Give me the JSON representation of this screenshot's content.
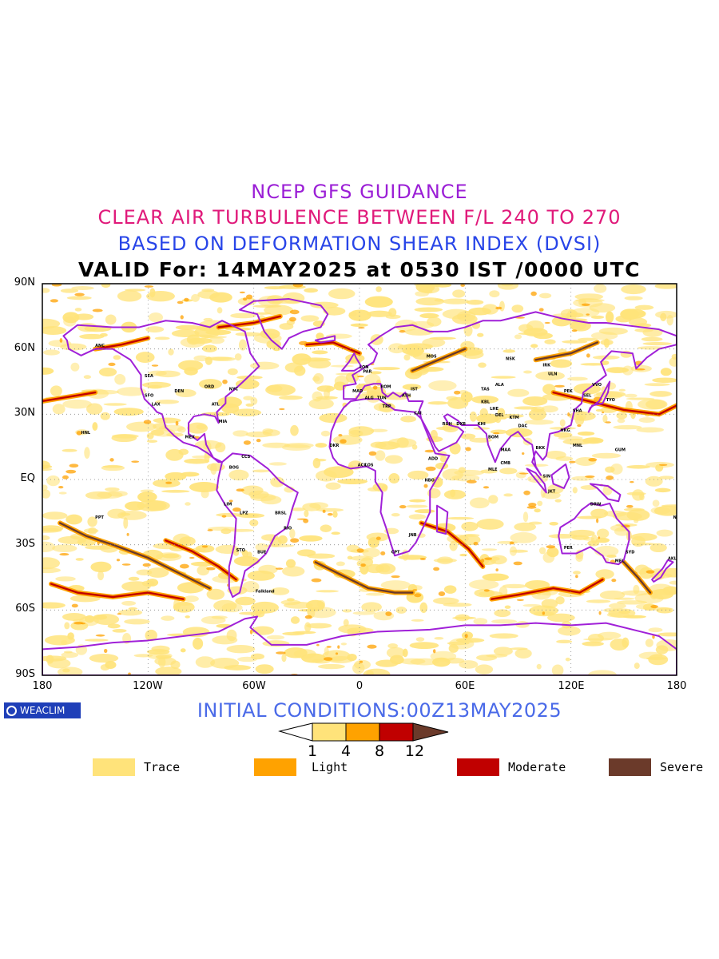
{
  "header": {
    "line1": "NCEP GFS GUIDANCE",
    "line2": "CLEAR AIR TURBULENCE BETWEEN F/L 240 TO 270",
    "line3": "BASED ON DEFORMATION SHEAR INDEX (DVSI)",
    "line4": "VALID For: 14MAY2025 at 0530 IST /0000 UTC"
  },
  "colors": {
    "line1": "#9b1fd6",
    "line2": "#e0197a",
    "line3": "#2845e8",
    "line4": "#000000",
    "coast": "#a020d8",
    "trace": "#ffe37a",
    "light": "#ffa200",
    "moderate": "#c00000",
    "severe": "#6b3a2a",
    "initial": "#4a6ae8"
  },
  "axes": {
    "lat_labels": [
      "90N",
      "60N",
      "30N",
      "EQ",
      "30S",
      "60S",
      "90S"
    ],
    "lon_labels": [
      "180",
      "120W",
      "60W",
      "0",
      "60E",
      "120E",
      "180"
    ]
  },
  "logo": {
    "text": "WEACLIM",
    "icon": "circle-logo-icon"
  },
  "initial_conditions": "INITIAL CONDITIONS:00Z13MAY2025",
  "colorbar": {
    "ticks": [
      "1",
      "4",
      "8",
      "12"
    ]
  },
  "legend": [
    {
      "label": "Trace",
      "color": "#ffe37a"
    },
    {
      "label": "Light",
      "color": "#ffa200"
    },
    {
      "label": "Moderate",
      "color": "#c00000"
    },
    {
      "label": "Severe",
      "color": "#6b3a2a"
    }
  ],
  "stations": [
    "ANC",
    "SEA",
    "SFO",
    "LAX",
    "DEN",
    "ORD",
    "ATL",
    "NYC",
    "MIA",
    "MEX",
    "HNL",
    "BOG",
    "LIM",
    "LPZ",
    "STO",
    "BRSL",
    "RIO",
    "BUE",
    "Falkland",
    "CCS",
    "LON",
    "PAR",
    "MAD",
    "ROM",
    "MOS",
    "CAI",
    "RUH",
    "DXB",
    "KHI",
    "DEL",
    "BOM",
    "MAA",
    "DAC",
    "CMB",
    "MLE",
    "KTM",
    "LHE",
    "BKK",
    "SIN",
    "HKG",
    "PEK",
    "SHA",
    "TYO",
    "SEL",
    "MNL",
    "JKT",
    "DRW",
    "SYD",
    "MEL",
    "AKL",
    "PER",
    "NBO",
    "ADD",
    "JNB",
    "CPT",
    "LOS",
    "ACC",
    "DKR",
    "ALG",
    "TRP",
    "IST",
    "ATH",
    "TUN",
    "KBL",
    "TAS",
    "ALA",
    "ULN",
    "IRK",
    "NSK",
    "VVO",
    "PPT",
    "GUM",
    "NAN"
  ]
}
